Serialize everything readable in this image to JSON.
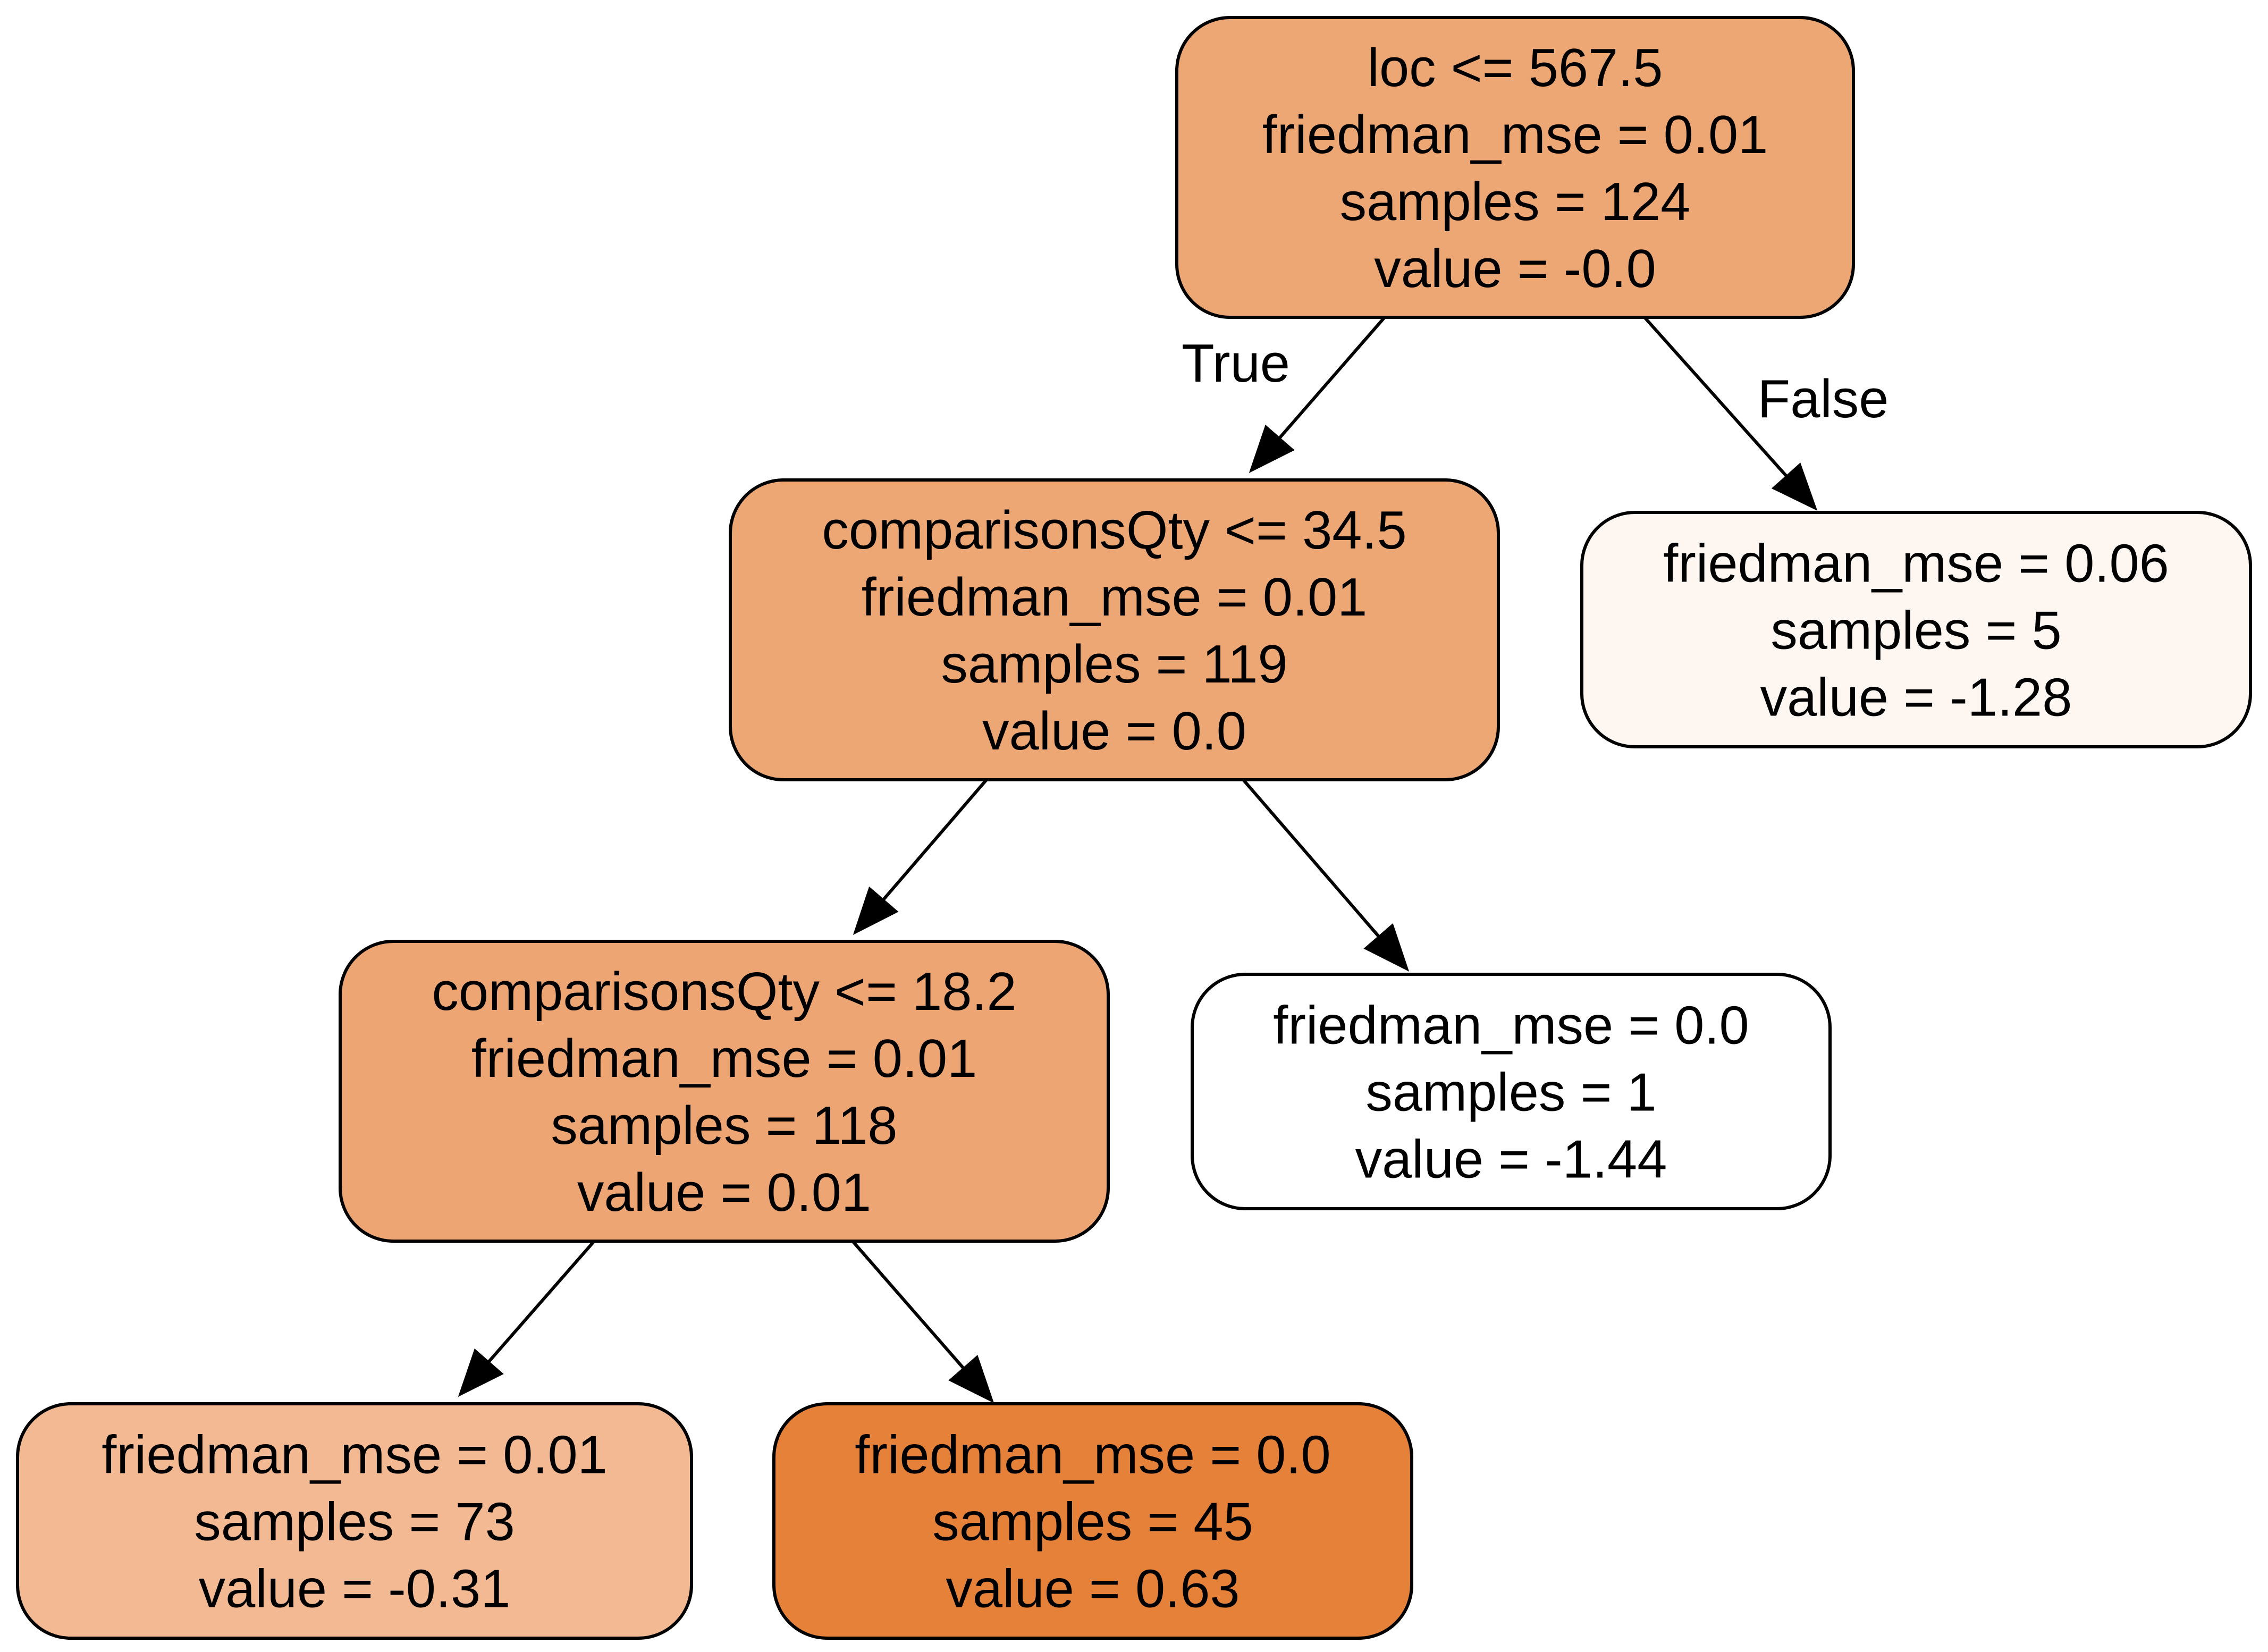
{
  "nodes": [
    {
      "id": "n0",
      "fill": "#eda774",
      "lines": [
        "loc <= 567.5",
        "friedman_mse = 0.01",
        "samples = 124",
        "value = -0.0"
      ]
    },
    {
      "id": "n1",
      "fill": "#eda774",
      "lines": [
        "comparisonsQty <= 34.5",
        "friedman_mse = 0.01",
        "samples = 119",
        "value = 0.0"
      ]
    },
    {
      "id": "n2",
      "fill": "#eda673",
      "lines": [
        "comparisonsQty <= 18.2",
        "friedman_mse = 0.01",
        "samples = 118",
        "value = 0.01"
      ]
    },
    {
      "id": "n3",
      "fill": "#f2b992",
      "lines": [
        "friedman_mse = 0.01",
        "samples = 73",
        "value = -0.31"
      ]
    },
    {
      "id": "n4",
      "fill": "#e58139",
      "lines": [
        "friedman_mse = 0.0",
        "samples = 45",
        "value = 0.63"
      ]
    },
    {
      "id": "n5",
      "fill": "#ffffff",
      "lines": [
        "friedman_mse = 0.0",
        "samples = 1",
        "value = -1.44"
      ]
    },
    {
      "id": "n6",
      "fill": "#fdf6f1",
      "lines": [
        "friedman_mse = 0.06",
        "samples = 5",
        "value = -1.28"
      ]
    }
  ],
  "edges": [
    {
      "from": "n0",
      "to": "n1",
      "label": "True"
    },
    {
      "from": "n0",
      "to": "n6",
      "label": "False"
    },
    {
      "from": "n1",
      "to": "n2",
      "label": ""
    },
    {
      "from": "n1",
      "to": "n5",
      "label": ""
    },
    {
      "from": "n2",
      "to": "n3",
      "label": ""
    },
    {
      "from": "n2",
      "to": "n4",
      "label": ""
    }
  ]
}
